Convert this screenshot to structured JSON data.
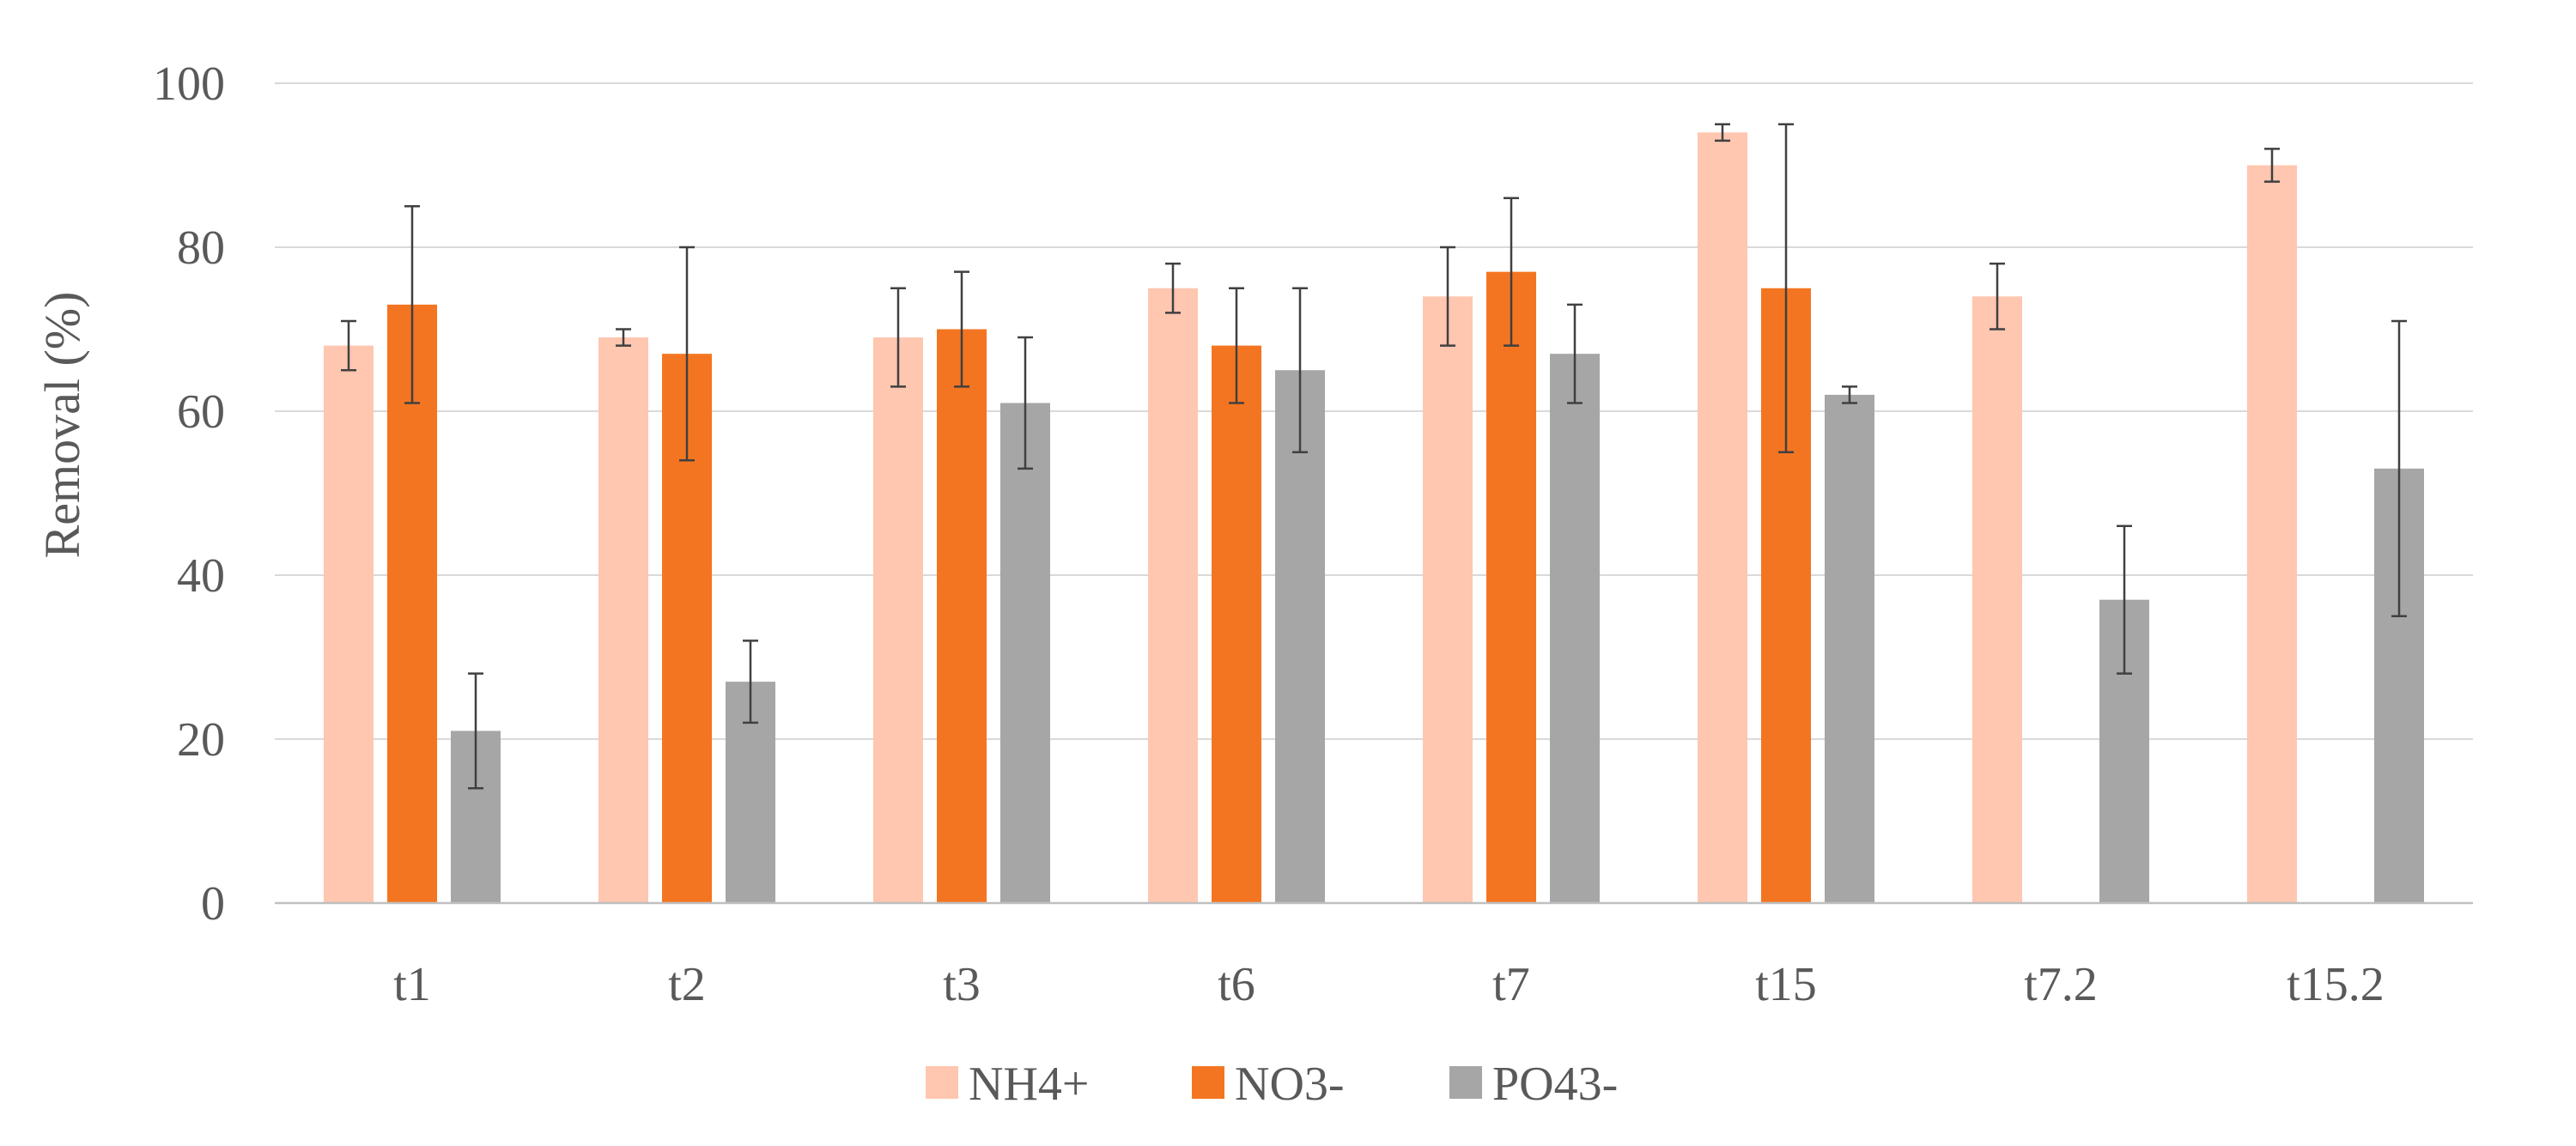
{
  "chart_data": {
    "type": "bar",
    "title": "",
    "xlabel": "",
    "ylabel": "Removal (%)",
    "ylim": [
      0,
      100
    ],
    "yticks": [
      0,
      20,
      40,
      60,
      80,
      100
    ],
    "grid": true,
    "legend_position": "bottom",
    "categories": [
      "t1",
      "t2",
      "t3",
      "t6",
      "t7",
      "t15",
      "t7.2",
      "t15.2"
    ],
    "series": [
      {
        "name": "NH4+",
        "color": "#FFC6B0",
        "values": [
          68,
          69,
          69,
          75,
          74,
          94,
          74,
          90
        ],
        "errors": [
          3,
          1,
          6,
          3,
          6,
          1,
          4,
          2
        ]
      },
      {
        "name": "NO3-",
        "color": "#F47521",
        "values": [
          73,
          67,
          70,
          68,
          77,
          75,
          null,
          null
        ],
        "errors": [
          12,
          13,
          7,
          7,
          9,
          20,
          null,
          null
        ]
      },
      {
        "name": "PO43-",
        "color": "#A6A6A6",
        "values": [
          21,
          27,
          61,
          65,
          67,
          62,
          37,
          53
        ],
        "errors": [
          7,
          5,
          8,
          10,
          6,
          1,
          9,
          18
        ]
      }
    ]
  }
}
